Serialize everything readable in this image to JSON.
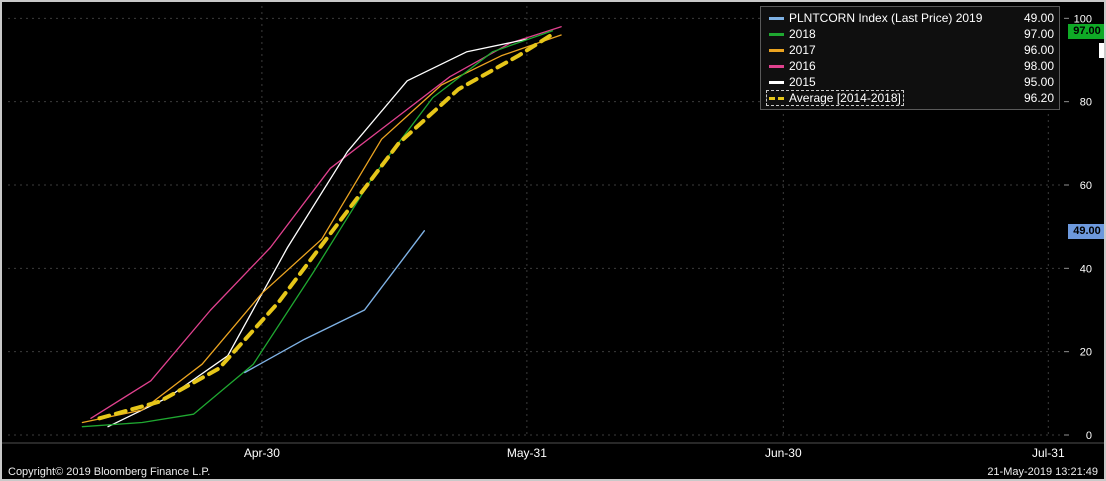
{
  "window": {
    "footer_left": "Copyright© 2019 Bloomberg Finance L.P.",
    "footer_right": "21-May-2019 13:21:49"
  },
  "legend": {
    "rows": [
      {
        "label": "PLNTCORN Index (Last Price) 2019",
        "value": "49.00",
        "color": "#7fb2e5",
        "style": "solid"
      },
      {
        "label": "2018",
        "value": "97.00",
        "color": "#1fa831",
        "style": "solid"
      },
      {
        "label": "2017",
        "value": "96.00",
        "color": "#eba421",
        "style": "solid"
      },
      {
        "label": "2016",
        "value": "98.00",
        "color": "#e0418e",
        "style": "solid"
      },
      {
        "label": "2015",
        "value": "95.00",
        "color": "#ffffff",
        "style": "solid"
      },
      {
        "label": "Average [2014-2018]",
        "value": "96.20",
        "color": "#e6c619",
        "style": "dashed",
        "highlighted": true
      }
    ]
  },
  "axis_badges": [
    {
      "value": "97.00",
      "color": "#0faa26",
      "y_value": 97,
      "partial": false
    },
    {
      "value": "",
      "color": "#ffffff",
      "y_value": 92.5,
      "partial": true
    },
    {
      "value": "49.00",
      "color": "#6d99dd",
      "y_value": 49,
      "partial": false
    }
  ],
  "chart_data": {
    "type": "line",
    "title": "",
    "xlabel": "",
    "ylabel": "",
    "ylim": [
      0,
      100
    ],
    "yticks": [
      0,
      20,
      40,
      60,
      80,
      100
    ],
    "grid": "dashed",
    "legend_position": "top-right",
    "x_axis": {
      "unit": "days since Apr-01",
      "ticks": [
        {
          "label": "Apr-30",
          "day": 29
        },
        {
          "label": "May-31",
          "day": 60
        },
        {
          "label": "Jun-30",
          "day": 90
        },
        {
          "label": "Jul-31",
          "day": 121
        }
      ]
    },
    "series": [
      {
        "name": "2016",
        "color": "#e0418e",
        "width": 1.3,
        "dash": null,
        "last_value": 98.0,
        "points": [
          [
            9,
            4
          ],
          [
            16,
            13
          ],
          [
            23,
            30
          ],
          [
            30,
            45
          ],
          [
            37,
            64
          ],
          [
            44,
            75
          ],
          [
            51,
            86
          ],
          [
            58,
            94
          ],
          [
            64,
            98
          ]
        ]
      },
      {
        "name": "2015",
        "color": "#ffffff",
        "width": 1.3,
        "dash": null,
        "last_value": 95.0,
        "points": [
          [
            11,
            2
          ],
          [
            18,
            9
          ],
          [
            25,
            19
          ],
          [
            32,
            45
          ],
          [
            39,
            68
          ],
          [
            46,
            85
          ],
          [
            53,
            92
          ],
          [
            60,
            95
          ]
        ]
      },
      {
        "name": "2017",
        "color": "#eba421",
        "width": 1.3,
        "dash": null,
        "last_value": 96.0,
        "points": [
          [
            8,
            3
          ],
          [
            15,
            6
          ],
          [
            22,
            17
          ],
          [
            29,
            34
          ],
          [
            36,
            47
          ],
          [
            43,
            71
          ],
          [
            50,
            84
          ],
          [
            57,
            91
          ],
          [
            64,
            96
          ]
        ]
      },
      {
        "name": "2018",
        "color": "#1fa831",
        "width": 1.3,
        "dash": null,
        "last_value": 97.0,
        "points": [
          [
            8,
            2
          ],
          [
            15,
            3
          ],
          [
            21,
            5
          ],
          [
            28,
            17
          ],
          [
            35,
            39
          ],
          [
            42,
            62
          ],
          [
            49,
            81
          ],
          [
            56,
            92
          ],
          [
            63,
            97
          ]
        ]
      },
      {
        "name": "Average [2014-2018]",
        "color": "#e6c619",
        "width": 4,
        "dash": "10 7",
        "last_value": 96.2,
        "points": [
          [
            10,
            4
          ],
          [
            17,
            8
          ],
          [
            24,
            16
          ],
          [
            31,
            32
          ],
          [
            38,
            51
          ],
          [
            45,
            70
          ],
          [
            52,
            83
          ],
          [
            59,
            91
          ],
          [
            63,
            96.2
          ]
        ]
      },
      {
        "name": "PLNTCORN Index (Last Price) 2019",
        "color": "#7fb2e5",
        "width": 1.4,
        "dash": null,
        "last_value": 49.0,
        "points": [
          [
            27,
            15
          ],
          [
            34,
            23
          ],
          [
            41,
            30
          ],
          [
            48,
            49
          ]
        ]
      }
    ]
  }
}
